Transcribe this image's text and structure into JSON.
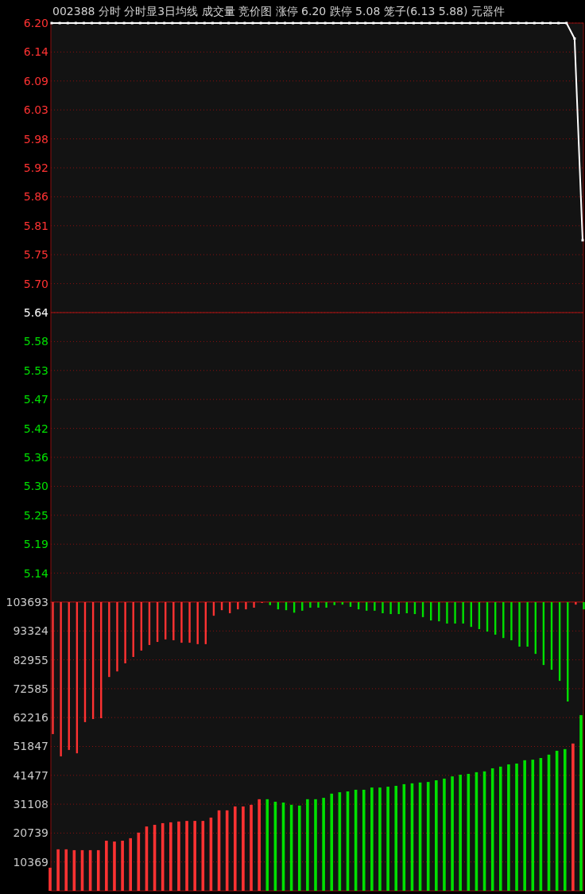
{
  "chart_data": [
    {
      "type": "line",
      "title": "002388  分时 分时显3日均线 成交量 竞价图 涨停 6.20 跌停 5.08 笼子(6.13 5.88) 元器件",
      "categories": [
        null,
        null,
        null,
        null,
        null,
        null,
        null,
        null,
        null,
        null,
        null,
        null,
        null,
        null,
        null,
        null,
        null,
        null,
        null,
        null,
        null,
        null,
        null,
        null,
        null,
        null,
        null,
        null,
        null,
        null,
        null,
        null,
        null,
        null,
        null,
        null,
        null,
        null,
        null,
        null,
        null,
        null,
        null,
        null,
        null,
        null,
        null,
        null,
        null,
        null,
        null,
        null,
        null,
        null,
        null,
        null,
        null,
        null,
        null,
        null,
        null,
        null,
        null,
        null,
        null,
        null,
        null
      ],
      "series": [
        {
          "color": "#ffffff",
          "values": [
            6.2,
            6.2,
            6.2,
            6.2,
            6.2,
            6.2,
            6.2,
            6.2,
            6.2,
            6.2,
            6.2,
            6.2,
            6.2,
            6.2,
            6.2,
            6.2,
            6.2,
            6.2,
            6.2,
            6.2,
            6.2,
            6.2,
            6.2,
            6.2,
            6.2,
            6.2,
            6.2,
            6.2,
            6.2,
            6.2,
            6.2,
            6.2,
            6.2,
            6.2,
            6.2,
            6.2,
            6.2,
            6.2,
            6.2,
            6.2,
            6.2,
            6.2,
            6.2,
            6.2,
            6.2,
            6.2,
            6.2,
            6.2,
            6.2,
            6.2,
            6.2,
            6.2,
            6.2,
            6.2,
            6.2,
            6.2,
            6.2,
            6.2,
            6.2,
            6.2,
            6.2,
            6.2,
            6.2,
            6.2,
            6.2,
            6.17,
            5.78
          ]
        }
      ],
      "ylim": [
        5.08,
        6.2
      ],
      "yticks": [
        {
          "value": 6.2,
          "label": "6.20"
        },
        {
          "value": 6.144,
          "label": "6.14"
        },
        {
          "value": 6.088,
          "label": "6.09"
        },
        {
          "value": 6.032,
          "label": "6.03"
        },
        {
          "value": 5.976,
          "label": "5.98"
        },
        {
          "value": 5.92,
          "label": "5.92"
        },
        {
          "value": 5.864,
          "label": "5.86"
        },
        {
          "value": 5.808,
          "label": "5.81"
        },
        {
          "value": 5.752,
          "label": "5.75"
        },
        {
          "value": 5.696,
          "label": "5.70"
        },
        {
          "value": 5.64,
          "label": "5.64"
        },
        {
          "value": 5.584,
          "label": "5.58"
        },
        {
          "value": 5.528,
          "label": "5.53"
        },
        {
          "value": 5.472,
          "label": "5.47"
        },
        {
          "value": 5.416,
          "label": "5.42"
        },
        {
          "value": 5.36,
          "label": "5.36"
        },
        {
          "value": 5.304,
          "label": "5.30"
        },
        {
          "value": 5.248,
          "label": "5.25"
        },
        {
          "value": 5.192,
          "label": "5.19"
        },
        {
          "value": 5.136,
          "label": "5.14"
        }
      ],
      "ref_lines": [
        {
          "axis": "y",
          "value": 5.64,
          "color": "#b01414"
        }
      ],
      "grid": "y",
      "marker": "square",
      "line_style": "solid",
      "tick_labels": "y"
    },
    {
      "type": "bar",
      "categories": [
        null,
        null,
        null,
        null,
        null,
        null,
        null,
        null,
        null,
        null,
        null,
        null,
        null,
        null,
        null,
        null,
        null,
        null,
        null,
        null,
        null,
        null,
        null,
        null,
        null,
        null,
        null,
        null,
        null,
        null,
        null,
        null,
        null,
        null,
        null,
        null,
        null,
        null,
        null,
        null,
        null,
        null,
        null,
        null,
        null,
        null,
        null,
        null,
        null,
        null,
        null,
        null,
        null,
        null,
        null,
        null,
        null,
        null,
        null,
        null,
        null,
        null,
        null,
        null,
        null,
        null,
        null
      ],
      "series": [
        {
          "colors": [
            "#ff3232",
            "#ff3232",
            "#ff3232",
            "#ff3232",
            "#ff3232",
            "#ff3232",
            "#ff3232",
            "#ff3232",
            "#ff3232",
            "#ff3232",
            "#ff3232",
            "#ff3232",
            "#ff3232",
            "#ff3232",
            "#ff3232",
            "#ff3232",
            "#ff3232",
            "#ff3232",
            "#ff3232",
            "#ff3232",
            "#ff3232",
            "#ff3232",
            "#ff3232",
            "#ff3232",
            "#ff3232",
            "#ff3232",
            "#ff3232",
            "#00e000",
            "#00e000",
            "#00e000",
            "#00e000",
            "#00e000",
            "#00e000",
            "#00e000",
            "#00e000",
            "#00e000",
            "#00e000",
            "#00e000",
            "#00e000",
            "#00e000",
            "#00e000",
            "#00e000",
            "#00e000",
            "#00e000",
            "#00e000",
            "#00e000",
            "#00e000",
            "#00e000",
            "#00e000",
            "#00e000",
            "#00e000",
            "#00e000",
            "#00e000",
            "#00e000",
            "#00e000",
            "#00e000",
            "#00e000",
            "#00e000",
            "#00e000",
            "#00e000",
            "#00e000",
            "#00e000",
            "#00e000",
            "#00e000",
            "#00e000",
            "#ff3232",
            "#00e000"
          ],
          "values": [
            8300,
            14900,
            14900,
            14600,
            14600,
            14600,
            14600,
            18000,
            17700,
            18000,
            18900,
            20900,
            23100,
            23700,
            24300,
            24600,
            24900,
            25100,
            25100,
            25100,
            26300,
            28900,
            28900,
            30300,
            30300,
            30900,
            32900,
            32900,
            32000,
            31700,
            30900,
            30600,
            32900,
            32900,
            33400,
            34900,
            35400,
            35700,
            36300,
            36300,
            37100,
            37100,
            37400,
            37700,
            38300,
            38600,
            38900,
            39100,
            39700,
            40300,
            41100,
            41700,
            42000,
            42600,
            42900,
            44000,
            44600,
            45400,
            45700,
            46900,
            47100,
            47700,
            48900,
            50300,
            50900,
            52900,
            63100
          ]
        },
        {
          "colors": [
            "#ff3232",
            "#ff3232",
            "#ff3232",
            "#ff3232",
            "#ff3232",
            "#ff3232",
            "#ff3232",
            "#ff3232",
            "#ff3232",
            "#ff3232",
            "#ff3232",
            "#ff3232",
            "#ff3232",
            "#ff3232",
            "#ff3232",
            "#ff3232",
            "#ff3232",
            "#ff3232",
            "#ff3232",
            "#ff3232",
            "#ff3232",
            "#ff3232",
            "#ff3232",
            "#ff3232",
            "#ff3232",
            "#ff3232",
            "#ff3232",
            "#00e000",
            "#00e000",
            "#00e000",
            "#00e000",
            "#00e000",
            "#00e000",
            "#00e000",
            "#00e000",
            "#00e000",
            "#00e000",
            "#00e000",
            "#00e000",
            "#00e000",
            "#00e000",
            "#00e000",
            "#00e000",
            "#00e000",
            "#00e000",
            "#00e000",
            "#00e000",
            "#00e000",
            "#00e000",
            "#00e000",
            "#00e000",
            "#00e000",
            "#00e000",
            "#00e000",
            "#00e000",
            "#00e000",
            "#00e000",
            "#00e000",
            "#00e000",
            "#00e000",
            "#00e000",
            "#00e000",
            "#00e000",
            "#00e000",
            "#00e000",
            "#ff3232",
            "#00e000"
          ],
          "base": [
            103693,
            103693,
            103693,
            103693,
            103693,
            103693,
            103693,
            103693,
            103693,
            103693,
            103693,
            103693,
            103693,
            103693,
            103693,
            103693,
            103693,
            103693,
            103693,
            103693,
            103693,
            103693,
            103693,
            103693,
            103693,
            103693,
            103693,
            103693,
            103693,
            103693,
            103693,
            103693,
            103693,
            103693,
            103693,
            103693,
            103693,
            103693,
            103693,
            103693,
            103693,
            103693,
            103693,
            103693,
            103693,
            103693,
            103693,
            103693,
            103693,
            103693,
            103693,
            103693,
            103693,
            103693,
            103693,
            103693,
            103693,
            103693,
            103693,
            103693,
            103693,
            103693,
            103693,
            103693,
            103693,
            103693,
            103693
          ],
          "values": [
            -47400,
            -55400,
            -53100,
            -54300,
            -43100,
            -42000,
            -41700,
            -26900,
            -24900,
            -22000,
            -19700,
            -17400,
            -15400,
            -14300,
            -13400,
            -13700,
            -14600,
            -14600,
            -15100,
            -15100,
            -4900,
            -2900,
            -4000,
            -2600,
            -2600,
            -2000,
            -300,
            -1100,
            -2600,
            -2900,
            -3800,
            -3100,
            -2000,
            -2000,
            -2000,
            -1100,
            -900,
            -1700,
            -2600,
            -3100,
            -3100,
            -4000,
            -4300,
            -4300,
            -4000,
            -4300,
            -5400,
            -6600,
            -6900,
            -7700,
            -7700,
            -7700,
            -8900,
            -9700,
            -10600,
            -11700,
            -12900,
            -13700,
            -16000,
            -16000,
            -18600,
            -22600,
            -24300,
            -28300,
            -35700,
            -900,
            -2600
          ]
        }
      ],
      "ylim": [
        0,
        103693
      ],
      "yticks": [
        10369,
        20739,
        31108,
        41477,
        51847,
        62216,
        72585,
        82955,
        93324,
        103693
      ],
      "grid": "y",
      "tick_labels": "y"
    }
  ]
}
